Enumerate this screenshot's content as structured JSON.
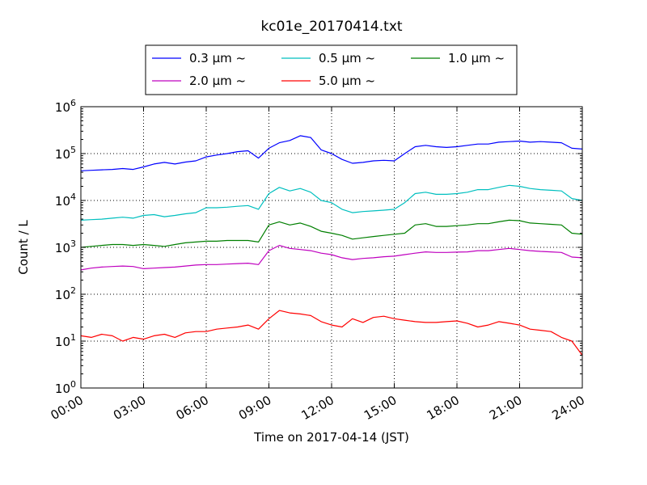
{
  "chart_data": {
    "type": "line",
    "title": "kc01e_20170414.txt",
    "xlabel": "Time on 2017-04-14 (JST)",
    "ylabel": "Count / L",
    "yscale": "log",
    "xlim": [
      "00:00",
      "24:00"
    ],
    "ylim": [
      1,
      1000000
    ],
    "grid": true,
    "legend_position": "top-center",
    "x_ticks": [
      "00:00",
      "03:00",
      "06:00",
      "09:00",
      "12:00",
      "15:00",
      "18:00",
      "21:00",
      "24:00"
    ],
    "y_ticks": [
      {
        "base": "10",
        "exp": "0"
      },
      {
        "base": "10",
        "exp": "1"
      },
      {
        "base": "10",
        "exp": "2"
      },
      {
        "base": "10",
        "exp": "3"
      },
      {
        "base": "10",
        "exp": "4"
      },
      {
        "base": "10",
        "exp": "5"
      },
      {
        "base": "10",
        "exp": "6"
      }
    ],
    "x": [
      "00:00",
      "00:30",
      "01:00",
      "01:30",
      "02:00",
      "02:30",
      "03:00",
      "03:30",
      "04:00",
      "04:30",
      "05:00",
      "05:30",
      "06:00",
      "06:30",
      "07:00",
      "07:30",
      "08:00",
      "08:30",
      "09:00",
      "09:30",
      "10:00",
      "10:30",
      "11:00",
      "11:30",
      "12:00",
      "12:30",
      "13:00",
      "13:30",
      "14:00",
      "14:30",
      "15:00",
      "15:30",
      "16:00",
      "16:30",
      "17:00",
      "17:30",
      "18:00",
      "18:30",
      "19:00",
      "19:30",
      "20:00",
      "20:30",
      "21:00",
      "21:30",
      "22:00",
      "22:30",
      "23:00",
      "23:30",
      "24:00"
    ],
    "series": [
      {
        "name": "0.3 μm ~",
        "color": "#0000ff",
        "values": [
          43000,
          44000,
          45000,
          46000,
          48000,
          46000,
          52000,
          60000,
          65000,
          60000,
          66000,
          70000,
          85000,
          93000,
          100000,
          110000,
          115000,
          80000,
          130000,
          170000,
          190000,
          240000,
          220000,
          120000,
          100000,
          75000,
          62000,
          65000,
          70000,
          72000,
          70000,
          100000,
          140000,
          150000,
          140000,
          135000,
          140000,
          150000,
          160000,
          160000,
          175000,
          180000,
          185000,
          175000,
          180000,
          175000,
          170000,
          130000,
          125000
        ]
      },
      {
        "name": "0.5 μm ~",
        "color": "#00bfbf",
        "values": [
          3800,
          3900,
          4000,
          4200,
          4400,
          4200,
          4800,
          5000,
          4500,
          4800,
          5200,
          5500,
          7000,
          7000,
          7200,
          7500,
          7800,
          6500,
          14000,
          19000,
          16000,
          18000,
          15000,
          10000,
          9000,
          6500,
          5500,
          5800,
          6000,
          6200,
          6500,
          9000,
          14000,
          15000,
          13500,
          13500,
          14000,
          15000,
          17000,
          17000,
          19000,
          21000,
          20000,
          18000,
          17000,
          16500,
          16000,
          11000,
          10000
        ]
      },
      {
        "name": "1.0 μm ~",
        "color": "#007f00",
        "values": [
          1000,
          1050,
          1100,
          1150,
          1150,
          1100,
          1150,
          1100,
          1050,
          1150,
          1250,
          1300,
          1350,
          1350,
          1400,
          1400,
          1400,
          1300,
          3000,
          3500,
          3000,
          3300,
          2800,
          2200,
          2000,
          1800,
          1500,
          1600,
          1700,
          1800,
          1900,
          2000,
          3000,
          3200,
          2800,
          2800,
          2900,
          3000,
          3200,
          3200,
          3500,
          3800,
          3700,
          3300,
          3200,
          3100,
          3000,
          2000,
          1900
        ]
      },
      {
        "name": "2.0 μm ~",
        "color": "#bf00bf",
        "values": [
          330,
          360,
          380,
          390,
          400,
          390,
          350,
          360,
          370,
          380,
          400,
          420,
          430,
          430,
          440,
          450,
          460,
          430,
          850,
          1100,
          950,
          900,
          850,
          750,
          700,
          600,
          550,
          580,
          600,
          630,
          650,
          700,
          750,
          800,
          780,
          780,
          790,
          800,
          850,
          850,
          900,
          950,
          900,
          850,
          820,
          800,
          780,
          620,
          600
        ]
      },
      {
        "name": "5.0 μm ~",
        "color": "#ff0000",
        "values": [
          13,
          12,
          14,
          13,
          10,
          12,
          11,
          13,
          14,
          12,
          15,
          16,
          16,
          18,
          19,
          20,
          22,
          18,
          30,
          45,
          40,
          38,
          35,
          26,
          22,
          20,
          30,
          25,
          32,
          34,
          30,
          28,
          26,
          25,
          25,
          26,
          27,
          24,
          20,
          22,
          26,
          24,
          22,
          18,
          17,
          16,
          12,
          10,
          5
        ]
      }
    ]
  }
}
